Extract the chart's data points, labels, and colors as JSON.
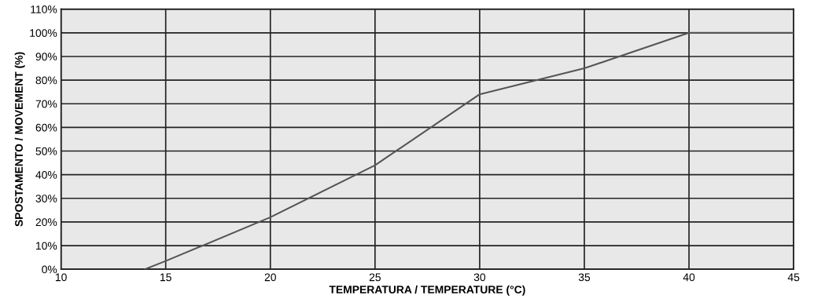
{
  "chart_data": {
    "type": "line",
    "xlabel": "TEMPERATURA / TEMPERATURE (°C)",
    "ylabel": "SPOSTAMENTO / MOVEMENT (%)",
    "x": [
      14,
      15,
      20,
      25,
      30,
      35,
      40,
      45
    ],
    "series": [
      {
        "color": "#555555",
        "values": [
          0,
          3.5,
          22,
          44,
          74,
          85,
          100,
          100
        ]
      }
    ],
    "xlim": [
      10,
      45
    ],
    "xticks": [
      10,
      15,
      20,
      25,
      30,
      35,
      40,
      45
    ],
    "ylim": [
      0,
      110
    ],
    "yticks": [
      {
        "value": 0,
        "label": "0%"
      },
      {
        "value": 10,
        "label": "10%"
      },
      {
        "value": 20,
        "label": "20%"
      },
      {
        "value": 30,
        "label": "30%"
      },
      {
        "value": 40,
        "label": "40%"
      },
      {
        "value": 50,
        "label": "50%"
      },
      {
        "value": 60,
        "label": "60%"
      },
      {
        "value": 70,
        "label": "70%"
      },
      {
        "value": 80,
        "label": "80%"
      },
      {
        "value": 90,
        "label": "90%"
      },
      {
        "value": 100,
        "label": "100%"
      },
      {
        "value": 110,
        "label": "110%"
      }
    ],
    "grid": true,
    "legend": false,
    "marker": "none",
    "line_style": "solid"
  }
}
